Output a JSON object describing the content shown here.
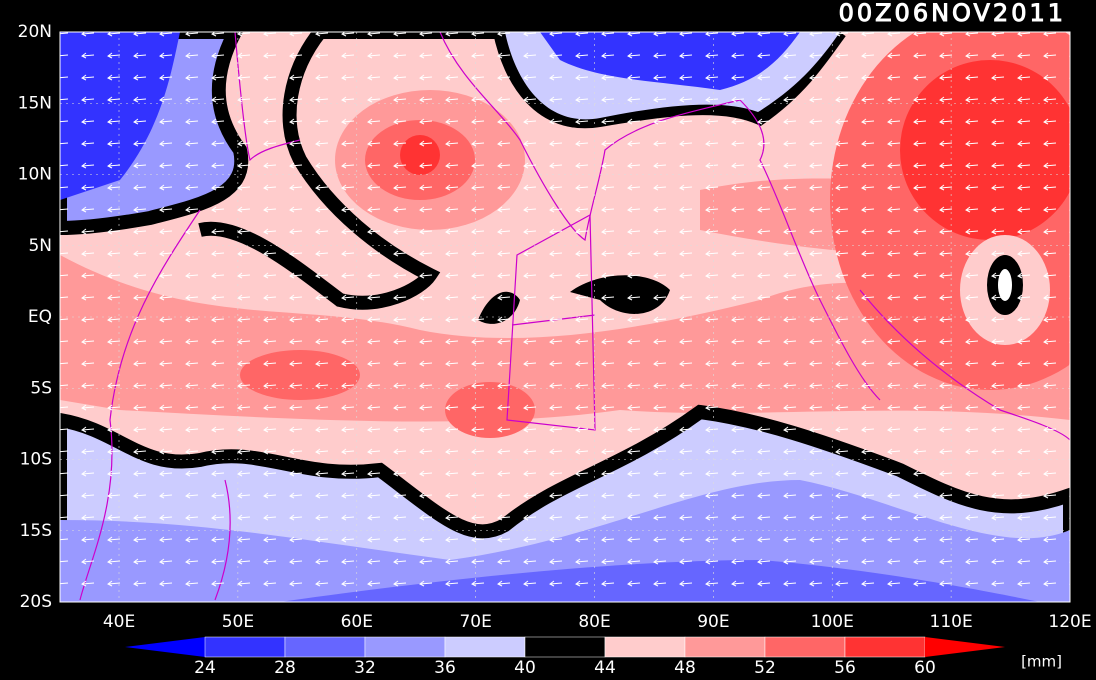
{
  "title": "00Z06NOV2011",
  "lat_labels": [
    "20N",
    "15N",
    "10N",
    "5N",
    "EQ",
    "5S",
    "10S",
    "15S",
    "20S"
  ],
  "lon_labels": [
    "40E",
    "50E",
    "60E",
    "70E",
    "80E",
    "90E",
    "100E",
    "110E",
    "120E"
  ],
  "colorbar": {
    "labels": [
      "24",
      "28",
      "32",
      "36",
      "40",
      "44",
      "48",
      "52",
      "56",
      "60"
    ],
    "colors": [
      "#0000ff",
      "#3333ff",
      "#6666ff",
      "#9999ff",
      "#ccccff",
      "#000000",
      "#ffcccc",
      "#ff9999",
      "#ff6666",
      "#ff3333",
      "#ff0000"
    ],
    "unit": "[mm]"
  }
}
